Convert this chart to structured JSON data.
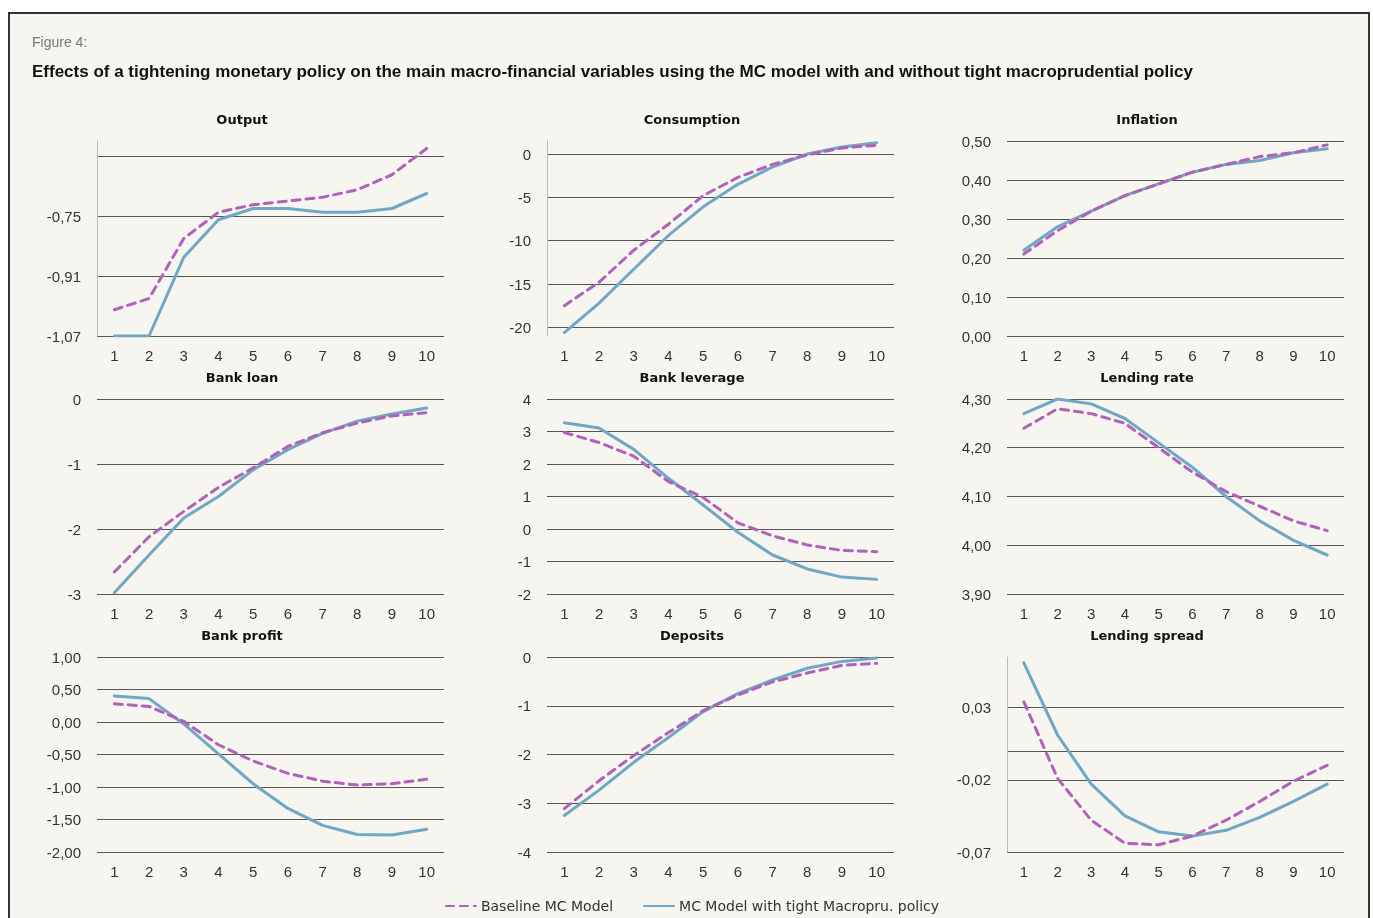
{
  "chart_data": [
    {
      "type": "line",
      "title": "Output",
      "annotations": [
        "Figure 4:",
        "Effects of a tightening monetary policy on the main macro-financial variables using the MC model with and without tight macroprudential policy"
      ],
      "categories": [
        "1",
        "2",
        "3",
        "4",
        "5",
        "6",
        "7",
        "8",
        "9",
        "10"
      ],
      "ylim": [
        -1.07,
        -0.55
      ],
      "yticks": [
        {
          "value": -1.07,
          "label": "-1,07"
        },
        {
          "value": -0.91,
          "label": "-0,91"
        },
        {
          "value": -0.75,
          "label": "-0,75"
        },
        {
          "value": -0.59,
          "label": null
        }
      ],
      "grid": "y",
      "marker": "none",
      "legend": false,
      "series": [
        {
          "color": "#6fa7c4",
          "line_style": "solid",
          "values": [
            -1.07,
            -1.07,
            -0.86,
            -0.76,
            -0.73,
            -0.73,
            -0.74,
            -0.74,
            -0.73,
            -0.69
          ]
        },
        {
          "color": "#b062b8",
          "line_style": "dashed",
          "values": [
            -1.0,
            -0.97,
            -0.81,
            -0.74,
            -0.72,
            -0.71,
            -0.7,
            -0.68,
            -0.64,
            -0.57
          ]
        }
      ]
    },
    {
      "type": "line",
      "title": "Consumption",
      "categories": [
        "1",
        "2",
        "3",
        "4",
        "5",
        "6",
        "7",
        "8",
        "9",
        "10"
      ],
      "ylim": [
        -21,
        1.5
      ],
      "yticks": [
        -20,
        -15,
        -10,
        -5,
        0
      ],
      "grid": "y",
      "marker": "none",
      "legend": false,
      "series": [
        {
          "color": "#6fa7c4",
          "line_style": "solid",
          "values": [
            -20.6,
            -17.2,
            -13.3,
            -9.4,
            -6.1,
            -3.5,
            -1.5,
            0,
            0.8,
            1.3
          ]
        },
        {
          "color": "#b062b8",
          "line_style": "dashed",
          "values": [
            -17.5,
            -14.8,
            -11.1,
            -8.1,
            -4.8,
            -2.7,
            -1.2,
            -0.1,
            0.7,
            1.0
          ]
        }
      ]
    },
    {
      "type": "line",
      "title": "Inflation",
      "categories": [
        "1",
        "2",
        "3",
        "4",
        "5",
        "6",
        "7",
        "8",
        "9",
        "10"
      ],
      "ylim": [
        0,
        0.5
      ],
      "yticks": [
        {
          "value": 0,
          "label": "0,00"
        },
        {
          "value": 0.1,
          "label": "0,10"
        },
        {
          "value": 0.2,
          "label": "0,20"
        },
        {
          "value": 0.3,
          "label": "0,30"
        },
        {
          "value": 0.4,
          "label": "0,40"
        },
        {
          "value": 0.5,
          "label": "0,50"
        }
      ],
      "grid": "y",
      "marker": "none",
      "legend": false,
      "series": [
        {
          "color": "#6fa7c4",
          "line_style": "solid",
          "values": [
            0.22,
            0.28,
            0.32,
            0.36,
            0.39,
            0.42,
            0.44,
            0.45,
            0.47,
            0.48
          ]
        },
        {
          "color": "#b062b8",
          "line_style": "dashed",
          "values": [
            0.21,
            0.27,
            0.32,
            0.36,
            0.39,
            0.42,
            0.44,
            0.46,
            0.47,
            0.49
          ]
        }
      ]
    },
    {
      "type": "line",
      "title": "Bank loan",
      "categories": [
        "1",
        "2",
        "3",
        "4",
        "5",
        "6",
        "7",
        "8",
        "9",
        "10"
      ],
      "ylim": [
        -3,
        0
      ],
      "yticks": [
        -3,
        -2,
        -1,
        0
      ],
      "grid": "y",
      "marker": "none",
      "legend": false,
      "series": [
        {
          "color": "#6fa7c4",
          "line_style": "solid",
          "values": [
            -2.98,
            -2.4,
            -1.83,
            -1.5,
            -1.09,
            -0.78,
            -0.53,
            -0.34,
            -0.23,
            -0.14
          ]
        },
        {
          "color": "#b062b8",
          "line_style": "dashed",
          "values": [
            -2.66,
            -2.12,
            -1.73,
            -1.36,
            -1.06,
            -0.73,
            -0.52,
            -0.37,
            -0.26,
            -0.21
          ]
        }
      ]
    },
    {
      "type": "line",
      "title": "Bank leverage",
      "categories": [
        "1",
        "2",
        "3",
        "4",
        "5",
        "6",
        "7",
        "8",
        "9",
        "10"
      ],
      "ylim": [
        -2,
        4
      ],
      "yticks": [
        -2,
        -1,
        0,
        1,
        2,
        3,
        4
      ],
      "grid": "y",
      "marker": "none",
      "legend": false,
      "series": [
        {
          "color": "#6fa7c4",
          "line_style": "solid",
          "values": [
            3.27,
            3.11,
            2.45,
            1.56,
            0.74,
            -0.1,
            -0.8,
            -1.23,
            -1.48,
            -1.55
          ]
        },
        {
          "color": "#b062b8",
          "line_style": "dashed",
          "values": [
            2.97,
            2.66,
            2.24,
            1.46,
            0.97,
            0.19,
            -0.21,
            -0.49,
            -0.66,
            -0.7
          ]
        }
      ]
    },
    {
      "type": "line",
      "title": "Lending rate",
      "categories": [
        "1",
        "2",
        "3",
        "4",
        "5",
        "6",
        "7",
        "8",
        "9",
        "10"
      ],
      "ylim": [
        3.9,
        4.3
      ],
      "yticks": [
        {
          "value": 3.9,
          "label": "3,90"
        },
        {
          "value": 4.0,
          "label": "4,00"
        },
        {
          "value": 4.1,
          "label": "4,10"
        },
        {
          "value": 4.2,
          "label": "4,20"
        },
        {
          "value": 4.3,
          "label": "4,30"
        }
      ],
      "grid": "y",
      "marker": "none",
      "legend": false,
      "series": [
        {
          "color": "#6fa7c4",
          "line_style": "solid",
          "values": [
            4.27,
            4.3,
            4.29,
            4.26,
            4.21,
            4.16,
            4.1,
            4.05,
            4.01,
            3.98
          ]
        },
        {
          "color": "#b062b8",
          "line_style": "dashed",
          "values": [
            4.24,
            4.28,
            4.27,
            4.25,
            4.2,
            4.15,
            4.11,
            4.08,
            4.05,
            4.03
          ]
        }
      ]
    },
    {
      "type": "line",
      "title": "Bank profit",
      "categories": [
        "1",
        "2",
        "3",
        "4",
        "5",
        "6",
        "7",
        "8",
        "9",
        "10"
      ],
      "ylim": [
        -2,
        1
      ],
      "yticks": [
        {
          "value": -2,
          "label": "-2,00"
        },
        {
          "value": -1.5,
          "label": "-1,50"
        },
        {
          "value": -1,
          "label": "-1,00"
        },
        {
          "value": -0.5,
          "label": "-0,50"
        },
        {
          "value": 0,
          "label": "0,00"
        },
        {
          "value": 0.5,
          "label": "0,50"
        },
        {
          "value": 1,
          "label": "1,00"
        }
      ],
      "grid": "y",
      "marker": "none",
      "legend": false,
      "series": [
        {
          "color": "#6fa7c4",
          "line_style": "solid",
          "values": [
            0.4,
            0.36,
            -0.03,
            -0.49,
            -0.95,
            -1.33,
            -1.59,
            -1.73,
            -1.74,
            -1.65
          ]
        },
        {
          "color": "#b062b8",
          "line_style": "dashed",
          "values": [
            0.28,
            0.24,
            0.01,
            -0.35,
            -0.6,
            -0.79,
            -0.91,
            -0.97,
            -0.95,
            -0.88
          ]
        }
      ]
    },
    {
      "type": "line",
      "title": "Deposits",
      "categories": [
        "1",
        "2",
        "3",
        "4",
        "5",
        "6",
        "7",
        "8",
        "9",
        "10"
      ],
      "ylim": [
        -4,
        0
      ],
      "yticks": [
        -4,
        -3,
        -2,
        -1,
        0
      ],
      "grid": "y",
      "marker": "none",
      "legend": "bottom",
      "series": [
        {
          "name": "MC Model with tight Macropru. policy",
          "color": "#6fa7c4",
          "line_style": "solid",
          "values": [
            -3.25,
            -2.73,
            -2.16,
            -1.65,
            -1.12,
            -0.75,
            -0.47,
            -0.23,
            -0.09,
            -0.02
          ]
        },
        {
          "name": "Baseline MC Model",
          "color": "#b062b8",
          "line_style": "dashed",
          "values": [
            -3.11,
            -2.54,
            -2.02,
            -1.55,
            -1.1,
            -0.78,
            -0.51,
            -0.33,
            -0.17,
            -0.13
          ]
        }
      ]
    },
    {
      "type": "line",
      "title": "Lending spread",
      "categories": [
        "1",
        "2",
        "3",
        "4",
        "5",
        "6",
        "7",
        "8",
        "9",
        "10"
      ],
      "ylim": [
        -0.07,
        0.065
      ],
      "yticks": [
        {
          "value": -0.07,
          "label": "-0,07"
        },
        {
          "value": -0.02,
          "label": "-0,02"
        },
        {
          "value": 0,
          "label": null
        },
        {
          "value": 0.03,
          "label": "0,03"
        }
      ],
      "grid": "y",
      "marker": "none",
      "legend": false,
      "series": [
        {
          "color": "#6fa7c4",
          "line_style": "solid",
          "values": [
            0.061,
            0.011,
            -0.023,
            -0.045,
            -0.056,
            -0.059,
            -0.055,
            -0.046,
            -0.035,
            -0.023
          ]
        },
        {
          "color": "#b062b8",
          "line_style": "dashed",
          "values": [
            0.034,
            -0.019,
            -0.048,
            -0.064,
            -0.065,
            -0.059,
            -0.048,
            -0.035,
            -0.021,
            -0.01
          ]
        }
      ]
    }
  ]
}
